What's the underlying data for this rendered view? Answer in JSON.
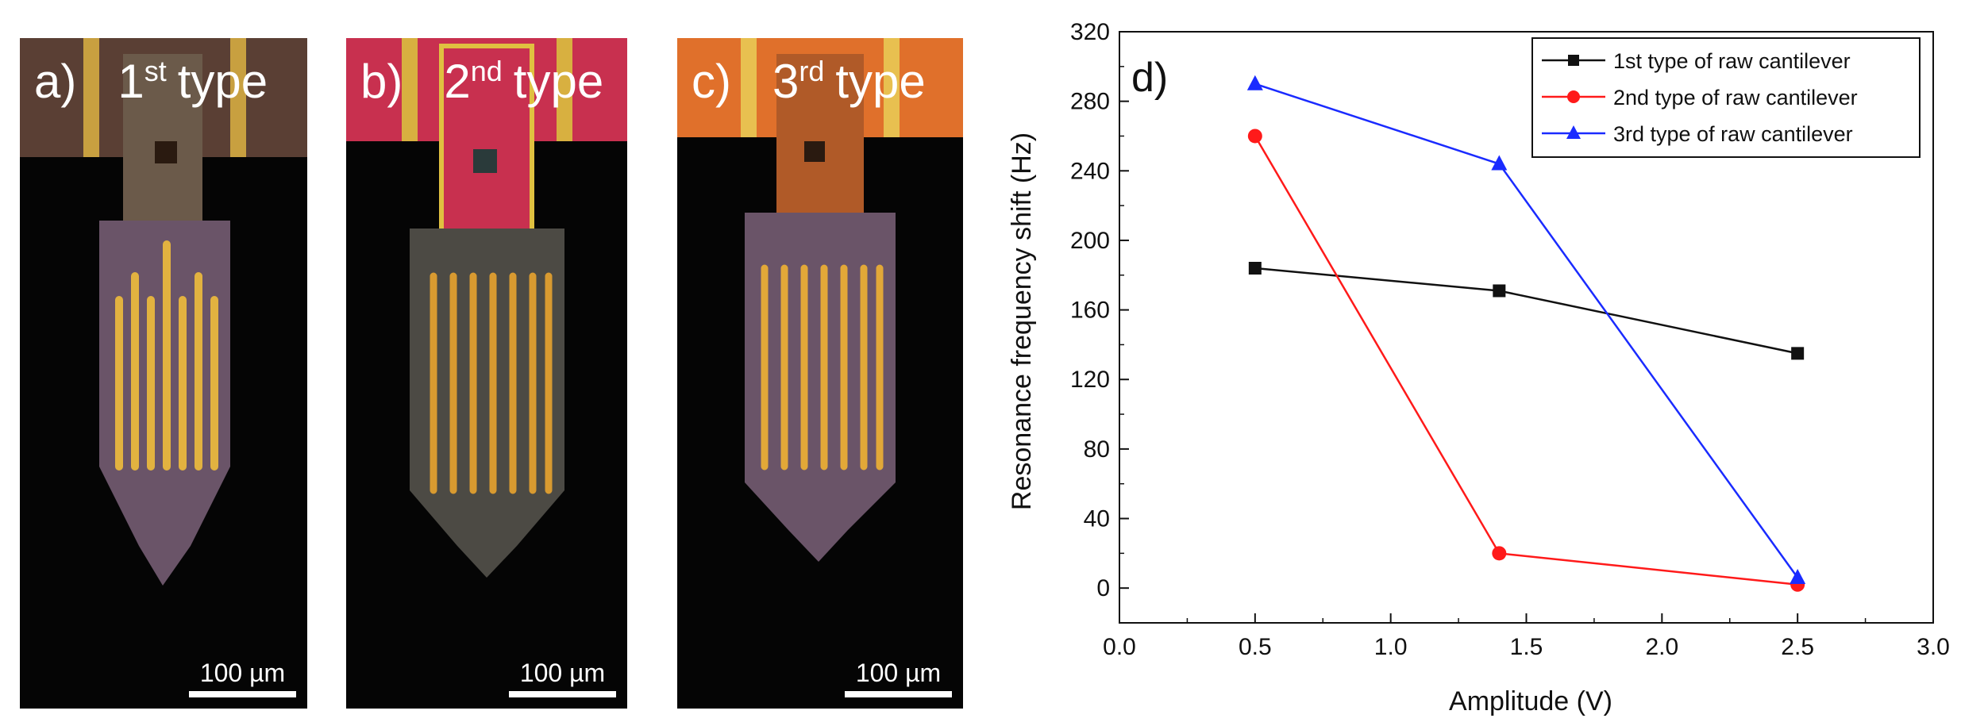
{
  "panels": [
    {
      "letter": "a)",
      "num": "1",
      "sup": "st",
      "word": "type",
      "scale": "100 µm",
      "bg": "#5a3f34"
    },
    {
      "letter": "b)",
      "num": "2",
      "sup": "nd",
      "word": "type",
      "scale": "100 µm",
      "bg": "#c8304f"
    },
    {
      "letter": "c)",
      "num": "3",
      "sup": "rd",
      "word": "type",
      "scale": "100 µm",
      "bg": "#e0702b"
    }
  ],
  "chart_data": {
    "type": "line",
    "panel_label": "d)",
    "xlabel": "Amplitude (V)",
    "ylabel": "Resonance frequency shift (Hz)",
    "xlim": [
      0.0,
      3.0
    ],
    "ylim": [
      -20,
      320
    ],
    "xticks": [
      "0.0",
      "0.5",
      "1.0",
      "1.5",
      "2.0",
      "2.5",
      "3.0"
    ],
    "yticks": [
      "0",
      "40",
      "80",
      "120",
      "160",
      "200",
      "240",
      "280",
      "320"
    ],
    "x": [
      0.5,
      1.4,
      2.5
    ],
    "series": [
      {
        "name": "1st type of raw cantilever",
        "color": "#111111",
        "marker": "square",
        "values": [
          184,
          171,
          135
        ]
      },
      {
        "name": "2nd type of raw cantilever",
        "color": "#ff1a1a",
        "marker": "circle",
        "values": [
          260,
          20,
          2
        ]
      },
      {
        "name": "3rd type of raw cantilever",
        "color": "#1a2bff",
        "marker": "triangle",
        "values": [
          290,
          244,
          6
        ]
      }
    ],
    "legend": "top-right"
  }
}
